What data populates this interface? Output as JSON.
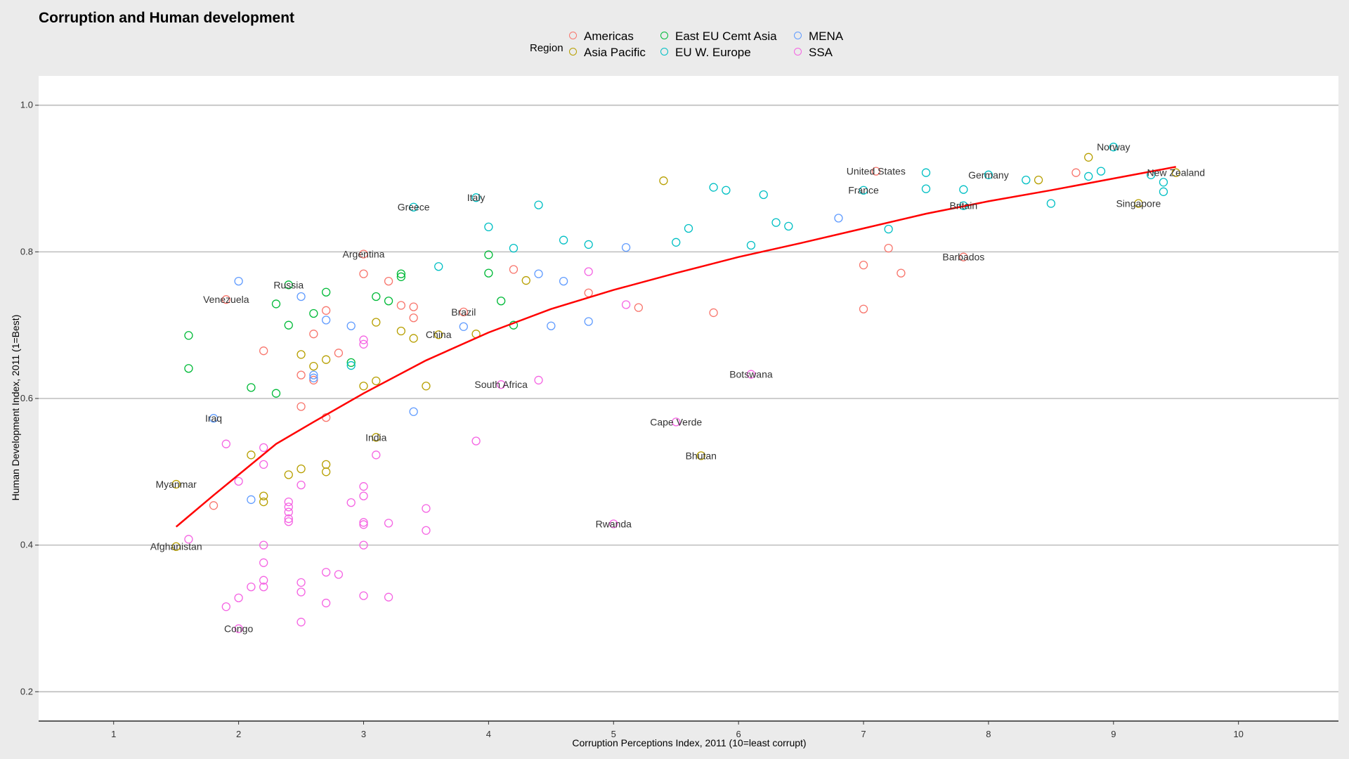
{
  "chart_data": {
    "type": "scatter",
    "title": "Corruption and Human development",
    "xlabel": "Corruption Perceptions Index, 2011 (10=least corrupt)",
    "ylabel": "Human Development Index, 2011 (1=Best)",
    "xlim": [
      0.4,
      10.8
    ],
    "ylim": [
      0.16,
      1.04
    ],
    "x_ticks": [
      1,
      2,
      3,
      4,
      5,
      6,
      7,
      8,
      9,
      10
    ],
    "y_ticks": [
      0.2,
      0.4,
      0.6,
      0.8,
      1.0
    ],
    "y_tick_labels": [
      "0.2",
      "0.4",
      "0.6",
      "0.8",
      "1.0"
    ],
    "grid": "horizontal major lines",
    "legend": {
      "title": "Region",
      "placement": "top",
      "entries": [
        "Americas",
        "Asia Pacific",
        "East EU Cemt Asia",
        "EU W. Europe",
        "MENA",
        "SSA"
      ]
    },
    "colors": {
      "Americas": "#F8766D",
      "Asia Pacific": "#B79F00",
      "East EU Cemt Asia": "#00BA38",
      "EU W. Europe": "#00BFC4",
      "MENA": "#619CFF",
      "SSA": "#F564E3",
      "trend": "#FF0000"
    },
    "series": [
      {
        "name": "Americas",
        "points": [
          [
            1.9,
            0.735
          ],
          [
            2.2,
            0.665
          ],
          [
            2.6,
            0.688
          ],
          [
            2.6,
            0.625
          ],
          [
            2.7,
            0.72
          ],
          [
            2.7,
            0.574
          ],
          [
            2.8,
            0.662
          ],
          [
            3.0,
            0.77
          ],
          [
            3.0,
            0.797
          ],
          [
            3.2,
            0.76
          ],
          [
            3.3,
            0.727
          ],
          [
            3.4,
            0.725
          ],
          [
            3.4,
            0.71
          ],
          [
            3.8,
            0.718
          ],
          [
            4.2,
            0.776
          ],
          [
            4.8,
            0.744
          ],
          [
            5.2,
            0.724
          ],
          [
            5.8,
            0.717
          ],
          [
            7.0,
            0.782
          ],
          [
            7.0,
            0.722
          ],
          [
            7.1,
            0.91
          ],
          [
            7.2,
            0.805
          ],
          [
            7.3,
            0.771
          ],
          [
            7.8,
            0.793
          ],
          [
            8.7,
            0.908
          ],
          [
            1.8,
            0.454
          ],
          [
            2.5,
            0.632
          ],
          [
            2.5,
            0.589
          ]
        ]
      },
      {
        "name": "Asia Pacific",
        "points": [
          [
            1.5,
            0.398
          ],
          [
            1.5,
            0.483
          ],
          [
            2.1,
            0.523
          ],
          [
            2.2,
            0.467
          ],
          [
            2.2,
            0.459
          ],
          [
            2.4,
            0.496
          ],
          [
            2.5,
            0.504
          ],
          [
            2.5,
            0.66
          ],
          [
            2.6,
            0.644
          ],
          [
            2.7,
            0.653
          ],
          [
            2.7,
            0.51
          ],
          [
            2.7,
            0.5
          ],
          [
            3.0,
            0.617
          ],
          [
            3.1,
            0.624
          ],
          [
            3.1,
            0.704
          ],
          [
            3.1,
            0.547
          ],
          [
            3.3,
            0.692
          ],
          [
            3.4,
            0.682
          ],
          [
            3.5,
            0.617
          ],
          [
            3.6,
            0.687
          ],
          [
            3.9,
            0.688
          ],
          [
            4.3,
            0.761
          ],
          [
            5.4,
            0.897
          ],
          [
            5.7,
            0.522
          ],
          [
            8.4,
            0.898
          ],
          [
            8.8,
            0.929
          ],
          [
            9.2,
            0.866
          ],
          [
            9.5,
            0.908
          ]
        ]
      },
      {
        "name": "East EU Cemt Asia",
        "points": [
          [
            1.6,
            0.686
          ],
          [
            1.6,
            0.641
          ],
          [
            2.1,
            0.615
          ],
          [
            2.3,
            0.729
          ],
          [
            2.3,
            0.607
          ],
          [
            2.4,
            0.755
          ],
          [
            2.4,
            0.7
          ],
          [
            2.6,
            0.716
          ],
          [
            2.7,
            0.745
          ],
          [
            2.9,
            0.649
          ],
          [
            3.1,
            0.739
          ],
          [
            3.2,
            0.733
          ],
          [
            3.3,
            0.77
          ],
          [
            3.3,
            0.766
          ],
          [
            4.0,
            0.796
          ],
          [
            4.0,
            0.771
          ],
          [
            4.1,
            0.733
          ],
          [
            4.2,
            0.7
          ]
        ]
      },
      {
        "name": "EU W. Europe",
        "points": [
          [
            2.9,
            0.645
          ],
          [
            3.4,
            0.861
          ],
          [
            3.6,
            0.78
          ],
          [
            3.9,
            0.874
          ],
          [
            4.0,
            0.834
          ],
          [
            4.2,
            0.805
          ],
          [
            4.4,
            0.864
          ],
          [
            4.6,
            0.816
          ],
          [
            4.8,
            0.81
          ],
          [
            5.5,
            0.813
          ],
          [
            5.6,
            0.832
          ],
          [
            5.8,
            0.888
          ],
          [
            5.9,
            0.884
          ],
          [
            6.1,
            0.809
          ],
          [
            6.2,
            0.878
          ],
          [
            6.3,
            0.84
          ],
          [
            6.4,
            0.835
          ],
          [
            7.0,
            0.884
          ],
          [
            7.2,
            0.831
          ],
          [
            7.5,
            0.908
          ],
          [
            7.5,
            0.886
          ],
          [
            7.8,
            0.885
          ],
          [
            7.8,
            0.863
          ],
          [
            8.0,
            0.905
          ],
          [
            8.3,
            0.898
          ],
          [
            8.5,
            0.866
          ],
          [
            8.8,
            0.903
          ],
          [
            8.9,
            0.91
          ],
          [
            9.0,
            0.943
          ],
          [
            9.3,
            0.905
          ],
          [
            9.4,
            0.895
          ],
          [
            9.4,
            0.882
          ]
        ]
      },
      {
        "name": "MENA",
        "points": [
          [
            1.8,
            0.573
          ],
          [
            2.0,
            0.76
          ],
          [
            2.1,
            0.462
          ],
          [
            2.5,
            0.739
          ],
          [
            2.6,
            0.632
          ],
          [
            2.6,
            0.628
          ],
          [
            2.7,
            0.707
          ],
          [
            2.9,
            0.699
          ],
          [
            3.4,
            0.582
          ],
          [
            3.8,
            0.698
          ],
          [
            4.4,
            0.77
          ],
          [
            4.5,
            0.699
          ],
          [
            4.6,
            0.76
          ],
          [
            4.8,
            0.705
          ],
          [
            5.1,
            0.806
          ],
          [
            6.8,
            0.846
          ]
        ]
      },
      {
        "name": "SSA",
        "points": [
          [
            1.6,
            0.408
          ],
          [
            1.9,
            0.538
          ],
          [
            1.9,
            0.316
          ],
          [
            2.0,
            0.286
          ],
          [
            2.0,
            0.328
          ],
          [
            2.0,
            0.487
          ],
          [
            2.1,
            0.343
          ],
          [
            2.2,
            0.533
          ],
          [
            2.2,
            0.51
          ],
          [
            2.2,
            0.4
          ],
          [
            2.2,
            0.376
          ],
          [
            2.2,
            0.352
          ],
          [
            2.2,
            0.343
          ],
          [
            2.4,
            0.459
          ],
          [
            2.4,
            0.452
          ],
          [
            2.4,
            0.445
          ],
          [
            2.4,
            0.436
          ],
          [
            2.4,
            0.432
          ],
          [
            2.5,
            0.482
          ],
          [
            2.5,
            0.349
          ],
          [
            2.5,
            0.336
          ],
          [
            2.5,
            0.295
          ],
          [
            2.7,
            0.363
          ],
          [
            2.7,
            0.321
          ],
          [
            2.8,
            0.36
          ],
          [
            2.9,
            0.458
          ],
          [
            3.0,
            0.48
          ],
          [
            3.0,
            0.467
          ],
          [
            3.0,
            0.431
          ],
          [
            3.0,
            0.428
          ],
          [
            3.0,
            0.4
          ],
          [
            3.0,
            0.331
          ],
          [
            3.1,
            0.523
          ],
          [
            3.2,
            0.43
          ],
          [
            3.2,
            0.329
          ],
          [
            3.5,
            0.45
          ],
          [
            3.5,
            0.42
          ],
          [
            3.9,
            0.542
          ],
          [
            4.1,
            0.619
          ],
          [
            4.4,
            0.625
          ],
          [
            4.8,
            0.773
          ],
          [
            5.0,
            0.429
          ],
          [
            5.1,
            0.728
          ],
          [
            5.5,
            0.568
          ],
          [
            6.1,
            0.633
          ],
          [
            3.0,
            0.674
          ],
          [
            3.0,
            0.68
          ]
        ]
      }
    ],
    "trend": {
      "color": "#FF0000",
      "points": [
        [
          1.5,
          0.425
        ],
        [
          1.8,
          0.468
        ],
        [
          2.0,
          0.496
        ],
        [
          2.3,
          0.538
        ],
        [
          2.6,
          0.568
        ],
        [
          3.0,
          0.607
        ],
        [
          3.5,
          0.652
        ],
        [
          4.0,
          0.69
        ],
        [
          4.5,
          0.722
        ],
        [
          5.0,
          0.748
        ],
        [
          5.5,
          0.771
        ],
        [
          6.0,
          0.793
        ],
        [
          6.5,
          0.812
        ],
        [
          7.0,
          0.832
        ],
        [
          7.5,
          0.852
        ],
        [
          8.0,
          0.869
        ],
        [
          8.5,
          0.884
        ],
        [
          9.0,
          0.9
        ],
        [
          9.5,
          0.916
        ]
      ]
    },
    "annotations": [
      {
        "text": "Norway",
        "x": 9.0,
        "y": 0.943
      },
      {
        "text": "New Zealand",
        "x": 9.5,
        "y": 0.908
      },
      {
        "text": "Germany",
        "x": 8.0,
        "y": 0.905
      },
      {
        "text": "United States",
        "x": 7.1,
        "y": 0.91
      },
      {
        "text": "France",
        "x": 7.0,
        "y": 0.884
      },
      {
        "text": "Singapore",
        "x": 9.2,
        "y": 0.866
      },
      {
        "text": "Britain",
        "x": 7.8,
        "y": 0.863
      },
      {
        "text": "Barbados",
        "x": 7.8,
        "y": 0.793
      },
      {
        "text": "Greece",
        "x": 3.4,
        "y": 0.861
      },
      {
        "text": "Italy",
        "x": 3.9,
        "y": 0.874
      },
      {
        "text": "Argentina",
        "x": 3.0,
        "y": 0.797
      },
      {
        "text": "Russia",
        "x": 2.4,
        "y": 0.755
      },
      {
        "text": "Venezuela",
        "x": 1.9,
        "y": 0.735
      },
      {
        "text": "Brazil",
        "x": 3.8,
        "y": 0.718
      },
      {
        "text": "China",
        "x": 3.6,
        "y": 0.687
      },
      {
        "text": "South Africa",
        "x": 4.1,
        "y": 0.619
      },
      {
        "text": "Botswana",
        "x": 6.1,
        "y": 0.633
      },
      {
        "text": "Iraq",
        "x": 1.8,
        "y": 0.573
      },
      {
        "text": "Cape Verde",
        "x": 5.5,
        "y": 0.568
      },
      {
        "text": "India",
        "x": 3.1,
        "y": 0.547
      },
      {
        "text": "Bhutan",
        "x": 5.7,
        "y": 0.522
      },
      {
        "text": "Myanmar",
        "x": 1.5,
        "y": 0.483
      },
      {
        "text": "Rwanda",
        "x": 5.0,
        "y": 0.429
      },
      {
        "text": "Afghanistan",
        "x": 1.5,
        "y": 0.398
      },
      {
        "text": "Congo",
        "x": 2.0,
        "y": 0.286
      }
    ]
  }
}
